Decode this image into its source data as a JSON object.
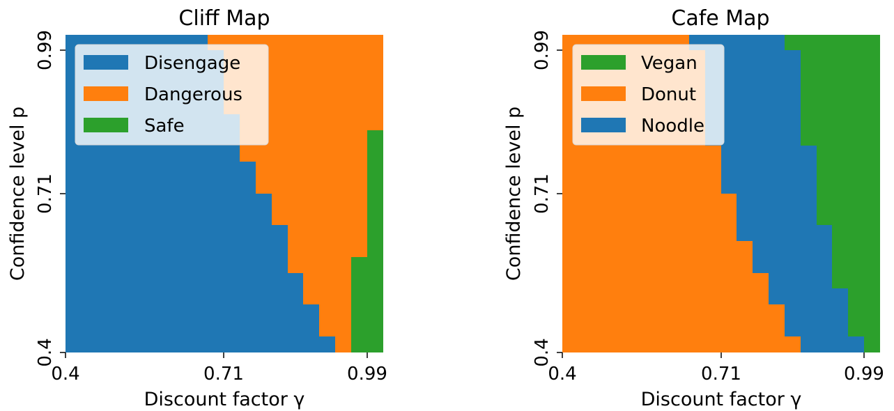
{
  "chart_data": [
    {
      "type": "heatmap",
      "title": "Cliff Map",
      "xlabel": "Discount factor γ",
      "ylabel": "Confidence level p",
      "xlim": [
        0.4,
        1.0
      ],
      "ylim": [
        0.4,
        1.0
      ],
      "xticks": [
        "0.4",
        "0.71",
        "0.99"
      ],
      "yticks": [
        "0.4",
        "0.71",
        "0.99"
      ],
      "legend_position": "top-left",
      "classes": [
        {
          "name": "Disengage",
          "color": "#1f77b4"
        },
        {
          "name": "Dangerous",
          "color": "#ff7f0e"
        },
        {
          "name": "Safe",
          "color": "#2ca02c"
        }
      ],
      "boundaries": [
        {
          "between": "Disengage|Dangerous",
          "points": [
            [
              0.4,
              0.41
            ],
            [
              0.91,
              0.41
            ],
            [
              0.91,
              0.43
            ],
            [
              0.88,
              0.43
            ],
            [
              0.88,
              0.49
            ],
            [
              0.85,
              0.49
            ],
            [
              0.85,
              0.55
            ],
            [
              0.82,
              0.55
            ],
            [
              0.82,
              0.64
            ],
            [
              0.79,
              0.64
            ],
            [
              0.79,
              0.7
            ],
            [
              0.76,
              0.7
            ],
            [
              0.76,
              0.76
            ],
            [
              0.73,
              0.76
            ],
            [
              0.73,
              0.89
            ],
            [
              0.7,
              0.89
            ],
            [
              0.7,
              0.97
            ],
            [
              0.67,
              0.97
            ],
            [
              0.67,
              1.0
            ]
          ]
        },
        {
          "between": "Dangerous|Safe",
          "points": [
            [
              0.94,
              0.41
            ],
            [
              0.94,
              0.58
            ],
            [
              0.97,
              0.58
            ],
            [
              0.97,
              0.82
            ],
            [
              1.0,
              0.82
            ]
          ]
        }
      ]
    },
    {
      "type": "heatmap",
      "title": "Cafe Map",
      "xlabel": "Discount factor γ",
      "ylabel": "Confidence level p",
      "xlim": [
        0.4,
        1.0
      ],
      "ylim": [
        0.4,
        1.0
      ],
      "xticks": [
        "0.4",
        "0.71",
        "0.99"
      ],
      "yticks": [
        "0.4",
        "0.71",
        "0.99"
      ],
      "legend_position": "top-left",
      "classes": [
        {
          "name": "Vegan",
          "color": "#2ca02c"
        },
        {
          "name": "Donut",
          "color": "#ff7f0e"
        },
        {
          "name": "Noodle",
          "color": "#1f77b4"
        }
      ],
      "boundaries": [
        {
          "between": "Donut|Noodle",
          "points": [
            [
              0.85,
              0.4
            ],
            [
              0.85,
              0.43
            ],
            [
              0.82,
              0.43
            ],
            [
              0.82,
              0.49
            ],
            [
              0.79,
              0.49
            ],
            [
              0.79,
              0.55
            ],
            [
              0.76,
              0.55
            ],
            [
              0.76,
              0.67
            ],
            [
              0.73,
              0.67
            ],
            [
              0.73,
              0.73
            ],
            [
              0.7,
              0.73
            ],
            [
              0.7,
              0.79
            ],
            [
              0.67,
              0.79
            ],
            [
              0.67,
              0.97
            ],
            [
              0.64,
              0.97
            ],
            [
              0.64,
              1.0
            ]
          ]
        },
        {
          "between": "Noodle|Vegan",
          "points": [
            [
              0.97,
              0.4
            ],
            [
              0.97,
              0.43
            ],
            [
              0.94,
              0.43
            ],
            [
              0.94,
              0.52
            ],
            [
              0.91,
              0.52
            ],
            [
              0.91,
              0.64
            ],
            [
              0.88,
              0.64
            ],
            [
              0.88,
              0.79
            ],
            [
              0.85,
              0.79
            ],
            [
              0.85,
              0.97
            ],
            [
              0.82,
              0.97
            ],
            [
              0.82,
              1.0
            ]
          ]
        }
      ]
    }
  ]
}
